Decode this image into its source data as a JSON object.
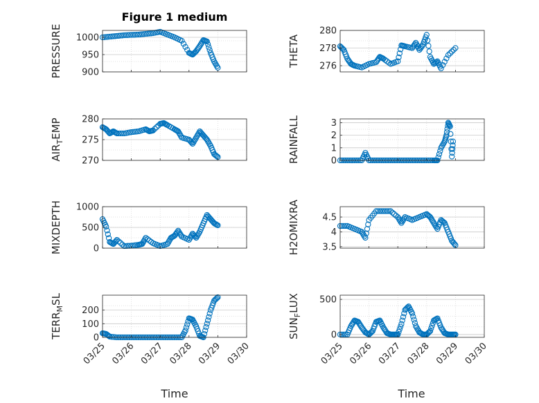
{
  "figure": {
    "title": "Figure 1 medium",
    "xlabel": "Time",
    "x_ticks": [
      "03/25",
      "03/26",
      "03/27",
      "03/28",
      "03/29",
      "03/30"
    ],
    "grid": true,
    "marker_color": "#0072BD",
    "axis_color": "#262626",
    "grid_color": "#d9d9d9"
  },
  "chart_data": [
    {
      "type": "scatter",
      "ylabel": "PRESSURE",
      "ylabel_sub": "",
      "ylim": [
        900,
        1020
      ],
      "yticks": [
        900,
        950,
        1000
      ],
      "x": [
        "03/25 00:00",
        "03/25 06:00",
        "03/25 12:00",
        "03/25 18:00",
        "03/26 00:00",
        "03/26 06:00",
        "03/26 12:00",
        "03/26 18:00",
        "03/27 00:00",
        "03/27 06:00",
        "03/27 12:00",
        "03/27 18:00",
        "03/28 00:00",
        "03/28 03:00",
        "03/28 06:00",
        "03/28 09:00",
        "03/28 12:00",
        "03/28 15:00",
        "03/28 18:00",
        "03/28 21:00",
        "03/29 00:00"
      ],
      "y": [
        1000,
        1002,
        1004,
        1006,
        1007,
        1008,
        1010,
        1012,
        1016,
        1008,
        1000,
        990,
        955,
        950,
        960,
        975,
        992,
        988,
        955,
        930,
        912
      ]
    },
    {
      "type": "scatter",
      "ylabel": "THETA",
      "ylabel_sub": "",
      "ylim": [
        275.3,
        280
      ],
      "yticks": [
        276,
        278,
        280
      ],
      "x": [
        "03/25 00:00",
        "03/25 03:00",
        "03/25 06:00",
        "03/25 09:00",
        "03/25 12:00",
        "03/25 18:00",
        "03/26 00:00",
        "03/26 06:00",
        "03/26 09:00",
        "03/26 12:00",
        "03/26 18:00",
        "03/27 00:00",
        "03/27 03:00",
        "03/27 06:00",
        "03/27 12:00",
        "03/27 15:00",
        "03/27 18:00",
        "03/27 21:00",
        "03/28 00:00",
        "03/28 03:00",
        "03/28 06:00",
        "03/28 09:00",
        "03/28 12:00",
        "03/28 18:00",
        "03/29 00:00"
      ],
      "y": [
        278.2,
        277.8,
        276.8,
        276.2,
        276.0,
        275.8,
        276.2,
        276.4,
        277.0,
        276.8,
        276.2,
        276.5,
        278.3,
        278.2,
        278.0,
        278.6,
        277.8,
        278.4,
        279.5,
        277.0,
        276.2,
        276.5,
        275.7,
        277.2,
        278.0
      ]
    },
    {
      "type": "scatter",
      "ylabel": "AIR",
      "ylabel_sub": "T",
      "ylabel_after": "EMP",
      "ylim": [
        270,
        280
      ],
      "yticks": [
        270,
        275,
        280
      ],
      "x": [
        "03/25 00:00",
        "03/25 03:00",
        "03/25 06:00",
        "03/25 09:00",
        "03/25 12:00",
        "03/25 18:00",
        "03/26 00:00",
        "03/26 06:00",
        "03/26 12:00",
        "03/26 15:00",
        "03/26 18:00",
        "03/27 00:00",
        "03/27 03:00",
        "03/27 06:00",
        "03/27 12:00",
        "03/27 15:00",
        "03/27 18:00",
        "03/28 00:00",
        "03/28 03:00",
        "03/28 06:00",
        "03/28 09:00",
        "03/28 12:00",
        "03/28 15:00",
        "03/28 18:00",
        "03/28 21:00",
        "03/29 00:00"
      ],
      "y": [
        278.0,
        277.5,
        276.5,
        277.0,
        276.5,
        276.5,
        276.8,
        277.0,
        277.5,
        277.0,
        277.2,
        278.8,
        279.0,
        278.5,
        277.5,
        277.0,
        275.5,
        275.0,
        274.0,
        275.5,
        277.0,
        276.0,
        275.0,
        273.5,
        271.5,
        270.8
      ]
    },
    {
      "type": "scatter",
      "ylabel": "RAINFALL",
      "ylabel_sub": "",
      "ylim": [
        0,
        3.3
      ],
      "yticks": [
        0,
        1,
        2,
        3
      ],
      "x": [
        "03/25 00:00",
        "03/25 06:00",
        "03/25 12:00",
        "03/25 18:00",
        "03/25 21:00",
        "03/26 00:00",
        "03/26 06:00",
        "03/26 12:00",
        "03/26 18:00",
        "03/27 00:00",
        "03/27 06:00",
        "03/27 12:00",
        "03/27 18:00",
        "03/28 00:00",
        "03/28 06:00",
        "03/28 09:00",
        "03/28 12:00",
        "03/28 15:00",
        "03/28 16:30",
        "03/28 18:00",
        "03/28 19:30",
        "03/28 21:00",
        "03/28 22:00"
      ],
      "y": [
        0,
        0,
        0,
        0,
        0.6,
        0,
        0,
        0,
        0,
        0,
        0,
        0,
        0,
        0,
        0,
        0,
        1.0,
        1.5,
        2.0,
        3.0,
        2.7,
        0.3,
        1.5
      ]
    },
    {
      "type": "scatter",
      "ylabel": "MIXDEPTH",
      "ylabel_sub": "",
      "ylim": [
        0,
        1000
      ],
      "yticks": [
        0,
        500,
        1000
      ],
      "x": [
        "03/25 00:00",
        "03/25 03:00",
        "03/25 06:00",
        "03/25 09:00",
        "03/25 12:00",
        "03/25 18:00",
        "03/26 00:00",
        "03/26 06:00",
        "03/26 09:00",
        "03/26 12:00",
        "03/26 18:00",
        "03/27 00:00",
        "03/27 06:00",
        "03/27 09:00",
        "03/27 12:00",
        "03/27 15:00",
        "03/27 18:00",
        "03/28 00:00",
        "03/28 03:00",
        "03/28 06:00",
        "03/28 09:00",
        "03/28 12:00",
        "03/28 15:00",
        "03/28 18:00",
        "03/28 21:00",
        "03/29 00:00"
      ],
      "y": [
        700,
        520,
        150,
        100,
        200,
        50,
        60,
        80,
        100,
        250,
        120,
        50,
        100,
        250,
        300,
        420,
        280,
        200,
        350,
        250,
        400,
        600,
        800,
        700,
        600,
        550
      ]
    },
    {
      "type": "scatter",
      "ylabel": "H2OMIXRA",
      "ylabel_sub": "",
      "ylim": [
        3.45,
        4.85
      ],
      "yticks": [
        3.5,
        4,
        4.5
      ],
      "x": [
        "03/25 00:00",
        "03/25 06:00",
        "03/25 12:00",
        "03/25 18:00",
        "03/25 21:00",
        "03/26 00:00",
        "03/26 06:00",
        "03/26 12:00",
        "03/26 18:00",
        "03/27 00:00",
        "03/27 03:00",
        "03/27 06:00",
        "03/27 12:00",
        "03/27 18:00",
        "03/28 00:00",
        "03/28 03:00",
        "03/28 06:00",
        "03/28 09:00",
        "03/28 12:00",
        "03/28 15:00",
        "03/28 18:00",
        "03/28 21:00",
        "03/29 00:00"
      ],
      "y": [
        4.2,
        4.2,
        4.1,
        4.0,
        3.8,
        4.4,
        4.7,
        4.7,
        4.7,
        4.5,
        4.3,
        4.5,
        4.4,
        4.5,
        4.6,
        4.5,
        4.3,
        4.1,
        4.4,
        4.3,
        4.0,
        3.7,
        3.55
      ]
    },
    {
      "type": "scatter",
      "ylabel": "TERR",
      "ylabel_sub": "M",
      "ylabel_after": "SL",
      "ylim": [
        0,
        310
      ],
      "yticks": [
        0,
        100,
        200
      ],
      "x": [
        "03/25 00:00",
        "03/25 03:00",
        "03/25 06:00",
        "03/25 12:00",
        "03/25 18:00",
        "03/26 00:00",
        "03/26 06:00",
        "03/26 12:00",
        "03/26 18:00",
        "03/27 00:00",
        "03/27 06:00",
        "03/27 12:00",
        "03/27 18:00",
        "03/27 21:00",
        "03/28 00:00",
        "03/28 03:00",
        "03/28 06:00",
        "03/28 09:00",
        "03/28 12:00",
        "03/28 15:00",
        "03/28 18:00",
        "03/28 21:00",
        "03/29 00:00"
      ],
      "y": [
        30,
        25,
        5,
        0,
        0,
        0,
        0,
        0,
        0,
        0,
        0,
        0,
        0,
        50,
        140,
        130,
        80,
        10,
        0,
        100,
        200,
        270,
        295
      ]
    },
    {
      "type": "scatter",
      "ylabel": "SUN",
      "ylabel_sub": "F",
      "ylabel_after": "LUX",
      "ylim": [
        -40,
        560
      ],
      "yticks": [
        0,
        500
      ],
      "x": [
        "03/25 00:00",
        "03/25 06:00",
        "03/25 09:00",
        "03/25 12:00",
        "03/25 15:00",
        "03/25 18:00",
        "03/25 21:00",
        "03/26 00:00",
        "03/26 03:00",
        "03/26 06:00",
        "03/26 09:00",
        "03/26 12:00",
        "03/26 15:00",
        "03/26 18:00",
        "03/26 21:00",
        "03/27 00:00",
        "03/27 03:00",
        "03/27 06:00",
        "03/27 09:00",
        "03/27 12:00",
        "03/27 15:00",
        "03/27 18:00",
        "03/27 21:00",
        "03/28 00:00",
        "03/28 03:00",
        "03/28 06:00",
        "03/28 09:00",
        "03/28 12:00",
        "03/28 15:00",
        "03/28 18:00",
        "03/28 21:00",
        "03/29 00:00"
      ],
      "y": [
        0,
        0,
        120,
        200,
        180,
        100,
        30,
        0,
        50,
        180,
        200,
        100,
        20,
        0,
        0,
        0,
        150,
        350,
        400,
        300,
        120,
        30,
        0,
        0,
        50,
        200,
        230,
        100,
        20,
        0,
        0,
        0
      ]
    }
  ]
}
